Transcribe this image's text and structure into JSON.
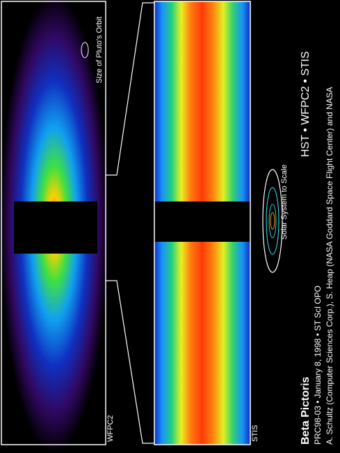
{
  "panels": {
    "wfpc2": {
      "label": "WFPC2",
      "note": "Size of Pluto's Orbit"
    },
    "stis": {
      "label": "STIS"
    }
  },
  "scale_label": "Solar System to Scale",
  "instruments": "HST • WFPC2 • STIS",
  "caption": {
    "title": "Beta Pictoris",
    "release": "PRC98-03 • January 8, 1998 • ST Scl OPO",
    "credit": "A. Schultz (Computer Sciences Corp.), S. Heap (NASA Goddard Space Flight Center) and NASA"
  }
}
